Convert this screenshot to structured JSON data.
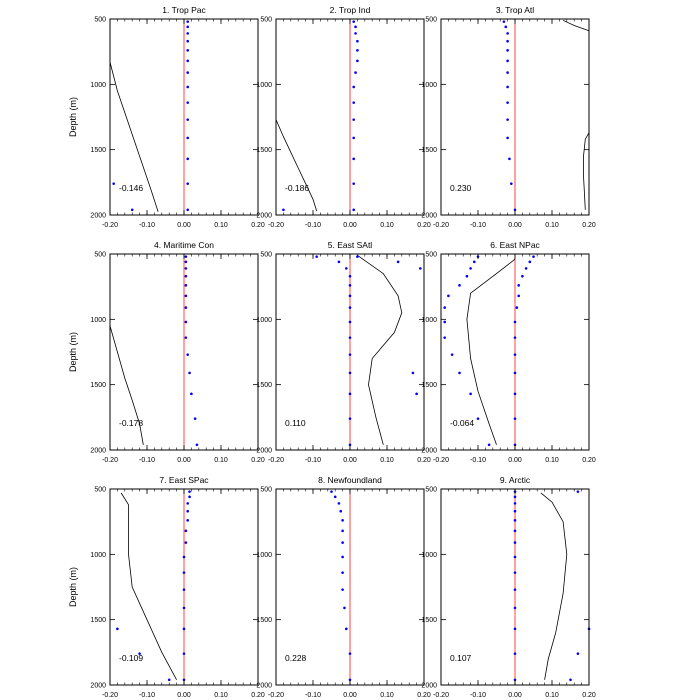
{
  "chart_data": {
    "type": "line",
    "ylabel": "Depth (m)",
    "xlim": [
      -0.2,
      0.2
    ],
    "ylim": [
      500,
      2000
    ],
    "y_inverted": true,
    "xticks": [
      -0.2,
      -0.1,
      0.0,
      0.1,
      0.2
    ],
    "xtick_labels": [
      "-0.20",
      "-0.10",
      "0.00",
      "0.10",
      "0.20"
    ],
    "yticks": [
      500,
      1000,
      1500,
      2000
    ],
    "ytick_labels": [
      "500",
      "1000",
      "1500",
      "2000"
    ],
    "colors": {
      "zero_line": "#ff4444",
      "profile_line": "#000000",
      "dots": "#0000ff"
    },
    "panels": [
      {
        "title": "1. Trop Pac",
        "stat": "-0.146",
        "line": [
          [
            -0.2,
            830
          ],
          [
            -0.18,
            1050
          ],
          [
            -0.15,
            1300
          ],
          [
            -0.12,
            1550
          ],
          [
            -0.09,
            1800
          ],
          [
            -0.07,
            1975
          ]
        ],
        "dots": [
          [
            0.01,
            520
          ],
          [
            0.01,
            560
          ],
          [
            0.01,
            610
          ],
          [
            0.01,
            670
          ],
          [
            0.01,
            740
          ],
          [
            0.01,
            820
          ],
          [
            0.01,
            910
          ],
          [
            0.01,
            1020
          ],
          [
            0.01,
            1140
          ],
          [
            0.01,
            1270
          ],
          [
            0.01,
            1410
          ],
          [
            0.01,
            1570
          ],
          [
            0.01,
            1760
          ],
          [
            0.01,
            1960
          ],
          [
            -0.19,
            1760
          ],
          [
            -0.14,
            1960
          ]
        ]
      },
      {
        "title": "2. Trop Ind",
        "stat": "-0.186",
        "line": [
          [
            -0.2,
            1270
          ],
          [
            -0.18,
            1400
          ],
          [
            -0.16,
            1520
          ],
          [
            -0.14,
            1640
          ],
          [
            -0.12,
            1760
          ],
          [
            -0.1,
            1880
          ],
          [
            -0.09,
            1970
          ]
        ],
        "dots": [
          [
            0.01,
            520
          ],
          [
            0.015,
            560
          ],
          [
            0.015,
            610
          ],
          [
            0.02,
            670
          ],
          [
            0.02,
            740
          ],
          [
            0.02,
            820
          ],
          [
            0.015,
            910
          ],
          [
            0.01,
            1020
          ],
          [
            0.01,
            1140
          ],
          [
            0.01,
            1270
          ],
          [
            0.01,
            1410
          ],
          [
            0.01,
            1570
          ],
          [
            0.01,
            1760
          ],
          [
            0.01,
            1960
          ],
          [
            -0.18,
            1960
          ]
        ]
      },
      {
        "title": "3. Trop Atl",
        "stat": "0.230",
        "line": [
          [
            0.13,
            510
          ],
          [
            0.16,
            550
          ],
          [
            0.2,
            590
          ],
          null,
          [
            0.2,
            1370
          ],
          [
            0.19,
            1420
          ],
          [
            0.185,
            1550
          ],
          [
            0.185,
            1700
          ],
          [
            0.19,
            1960
          ]
        ],
        "dots": [
          [
            -0.03,
            520
          ],
          [
            -0.025,
            560
          ],
          [
            -0.02,
            610
          ],
          [
            -0.02,
            670
          ],
          [
            -0.02,
            740
          ],
          [
            -0.02,
            820
          ],
          [
            -0.02,
            910
          ],
          [
            -0.02,
            1020
          ],
          [
            -0.02,
            1140
          ],
          [
            -0.02,
            1270
          ],
          [
            -0.02,
            1410
          ],
          [
            -0.015,
            1570
          ],
          [
            -0.01,
            1760
          ],
          [
            0.0,
            1960
          ]
        ]
      },
      {
        "title": "4. Maritime Con",
        "stat": "-0.178",
        "line": [
          [
            -0.2,
            1050
          ],
          [
            -0.18,
            1250
          ],
          [
            -0.16,
            1450
          ],
          [
            -0.14,
            1620
          ],
          [
            -0.12,
            1800
          ],
          [
            -0.11,
            1960
          ]
        ],
        "dots": [
          [
            0.005,
            520
          ],
          [
            0.005,
            560
          ],
          [
            0.005,
            610
          ],
          [
            0.005,
            670
          ],
          [
            0.005,
            740
          ],
          [
            0.005,
            820
          ],
          [
            0.005,
            910
          ],
          [
            0.005,
            1020
          ],
          [
            0.005,
            1140
          ],
          [
            0.01,
            1270
          ],
          [
            0.015,
            1410
          ],
          [
            0.02,
            1570
          ],
          [
            0.03,
            1760
          ],
          [
            0.035,
            1960
          ]
        ]
      },
      {
        "title": "5. East SAtl",
        "stat": "0.110",
        "line": [
          [
            0.02,
            510
          ],
          [
            0.09,
            650
          ],
          [
            0.13,
            820
          ],
          [
            0.14,
            950
          ],
          [
            0.12,
            1100
          ],
          [
            0.06,
            1300
          ],
          [
            0.05,
            1500
          ],
          [
            0.07,
            1750
          ],
          [
            0.09,
            1960
          ]
        ],
        "dots": [
          [
            -0.09,
            520
          ],
          [
            -0.03,
            560
          ],
          [
            -0.01,
            610
          ],
          [
            0.0,
            670
          ],
          [
            0.0,
            740
          ],
          [
            0.0,
            820
          ],
          [
            0.0,
            910
          ],
          [
            0.0,
            1020
          ],
          [
            0.0,
            1140
          ],
          [
            0.0,
            1270
          ],
          [
            0.0,
            1410
          ],
          [
            0.0,
            1570
          ],
          [
            0.0,
            1760
          ],
          [
            0.0,
            1960
          ],
          [
            0.02,
            520
          ],
          [
            0.13,
            560
          ],
          [
            0.19,
            610
          ],
          [
            0.17,
            1410
          ],
          [
            0.18,
            1570
          ]
        ]
      },
      {
        "title": "6. East NPac",
        "stat": "-0.064",
        "line": [
          [
            0.0,
            540
          ],
          [
            -0.05,
            650
          ],
          [
            -0.12,
            800
          ],
          [
            -0.13,
            1000
          ],
          [
            -0.12,
            1300
          ],
          [
            -0.1,
            1550
          ],
          [
            -0.07,
            1800
          ],
          [
            -0.05,
            1960
          ]
        ],
        "dots": [
          [
            0.05,
            520
          ],
          [
            0.04,
            560
          ],
          [
            0.03,
            610
          ],
          [
            0.02,
            670
          ],
          [
            0.01,
            740
          ],
          [
            0.01,
            820
          ],
          [
            0.005,
            910
          ],
          [
            0.0,
            1020
          ],
          [
            0.0,
            1140
          ],
          [
            0.0,
            1270
          ],
          [
            0.0,
            1410
          ],
          [
            0.0,
            1570
          ],
          [
            0.0,
            1760
          ],
          [
            0.0,
            1960
          ],
          [
            -0.1,
            520
          ],
          [
            -0.11,
            560
          ],
          [
            -0.12,
            610
          ],
          [
            -0.13,
            670
          ],
          [
            -0.15,
            740
          ],
          [
            -0.18,
            820
          ],
          [
            -0.19,
            910
          ],
          [
            -0.19,
            1020
          ],
          [
            -0.19,
            1140
          ],
          [
            -0.17,
            1270
          ],
          [
            -0.15,
            1410
          ],
          [
            -0.12,
            1570
          ],
          [
            -0.1,
            1760
          ],
          [
            -0.07,
            1960
          ]
        ]
      },
      {
        "title": "7. East SPac",
        "stat": "-0.109",
        "line": [
          [
            -0.17,
            530
          ],
          [
            -0.15,
            620
          ],
          [
            -0.15,
            800
          ],
          [
            -0.15,
            1000
          ],
          [
            -0.14,
            1250
          ],
          [
            -0.1,
            1500
          ],
          [
            -0.06,
            1750
          ],
          [
            -0.02,
            1960
          ]
        ],
        "dots": [
          [
            0.015,
            520
          ],
          [
            0.015,
            560
          ],
          [
            0.01,
            610
          ],
          [
            0.01,
            670
          ],
          [
            0.01,
            740
          ],
          [
            0.005,
            820
          ],
          [
            0.005,
            910
          ],
          [
            0.0,
            1020
          ],
          [
            0.0,
            1140
          ],
          [
            0.0,
            1270
          ],
          [
            0.0,
            1410
          ],
          [
            0.0,
            1570
          ],
          [
            0.0,
            1760
          ],
          [
            0.0,
            1960
          ],
          [
            -0.18,
            1570
          ],
          [
            -0.12,
            1760
          ],
          [
            -0.04,
            1960
          ]
        ]
      },
      {
        "title": "8. Newfoundland",
        "stat": "0.228",
        "line": [],
        "dots": [
          [
            -0.05,
            520
          ],
          [
            -0.04,
            560
          ],
          [
            -0.03,
            610
          ],
          [
            -0.025,
            670
          ],
          [
            -0.02,
            740
          ],
          [
            -0.02,
            820
          ],
          [
            -0.02,
            910
          ],
          [
            -0.02,
            1020
          ],
          [
            -0.02,
            1140
          ],
          [
            -0.02,
            1270
          ],
          [
            -0.015,
            1410
          ],
          [
            -0.01,
            1570
          ],
          [
            0.0,
            1760
          ],
          [
            0.0,
            1960
          ]
        ]
      },
      {
        "title": "9. Arctic",
        "stat": "0.107",
        "line": [
          [
            0.07,
            530
          ],
          [
            0.1,
            600
          ],
          [
            0.13,
            750
          ],
          [
            0.14,
            1000
          ],
          [
            0.13,
            1300
          ],
          [
            0.11,
            1600
          ],
          [
            0.09,
            1800
          ],
          [
            0.08,
            1960
          ]
        ],
        "dots": [
          [
            0.0,
            520
          ],
          [
            0.0,
            560
          ],
          [
            0.0,
            610
          ],
          [
            0.0,
            670
          ],
          [
            0.0,
            740
          ],
          [
            0.0,
            820
          ],
          [
            0.0,
            910
          ],
          [
            0.0,
            1020
          ],
          [
            0.0,
            1140
          ],
          [
            0.0,
            1270
          ],
          [
            0.0,
            1410
          ],
          [
            0.0,
            1570
          ],
          [
            0.0,
            1760
          ],
          [
            0.0,
            1960
          ],
          [
            0.17,
            520
          ],
          [
            0.2,
            1570
          ],
          [
            0.17,
            1760
          ],
          [
            0.15,
            1960
          ]
        ]
      }
    ]
  }
}
